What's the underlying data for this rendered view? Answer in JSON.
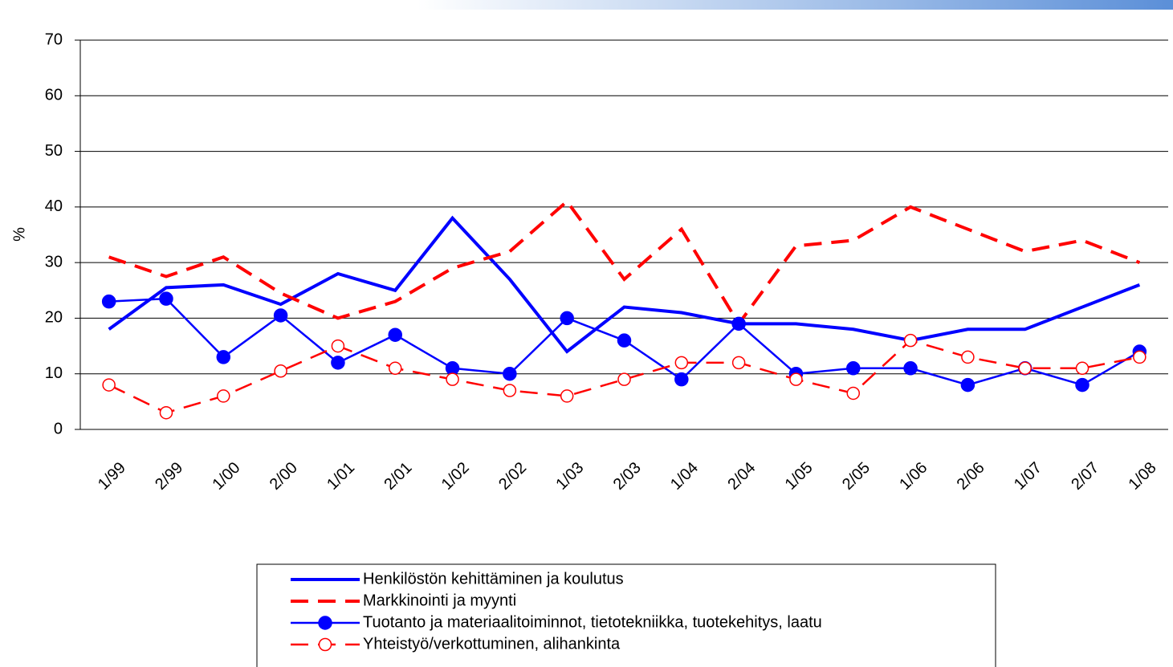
{
  "chart_data": {
    "type": "line",
    "y_label": "%",
    "categories": [
      "1/99",
      "2/99",
      "1/00",
      "2/00",
      "1/01",
      "2/01",
      "1/02",
      "2/02",
      "1/03",
      "2/03",
      "1/04",
      "2/04",
      "1/05",
      "2/05",
      "1/06",
      "2/06",
      "1/07",
      "2/07",
      "1/08"
    ],
    "series": [
      {
        "name": "Henkilöstön kehittäminen ja koulutus",
        "color": "#0000ff",
        "dash": false,
        "marker": null,
        "values": [
          18,
          25.5,
          26,
          22.5,
          28,
          25,
          38,
          27,
          14,
          22,
          21,
          19,
          19,
          18,
          16,
          18,
          18,
          22,
          26
        ]
      },
      {
        "name": "Markkinointi ja myynti",
        "color": "#ff0000",
        "dash": true,
        "marker": null,
        "values": [
          31,
          27.5,
          31,
          24.5,
          20,
          23,
          29,
          32,
          41,
          27,
          36,
          19,
          33,
          34,
          40,
          36,
          32,
          34,
          30
        ]
      },
      {
        "name": "Tuotanto ja materiaalitoiminnot, tietotekniikka, tuotekehitys, laatu",
        "color": "#0000ff",
        "dash": false,
        "marker": "filled",
        "values": [
          23,
          23.5,
          13,
          20.5,
          12,
          17,
          11,
          10,
          20,
          16,
          9,
          19,
          10,
          11,
          11,
          8,
          11,
          8,
          14
        ]
      },
      {
        "name": "Yhteistyö/verkottuminen, alihankinta",
        "color": "#ff0000",
        "dash": true,
        "marker": "open",
        "values": [
          8,
          3,
          6,
          10.5,
          15,
          11,
          9,
          7,
          6,
          9,
          12,
          12,
          9,
          6.5,
          16,
          13,
          11,
          11,
          13
        ]
      }
    ],
    "ylim": [
      0,
      70
    ],
    "yticks": [
      0,
      10,
      20,
      30,
      40,
      50,
      60,
      70
    ],
    "grid": true
  }
}
